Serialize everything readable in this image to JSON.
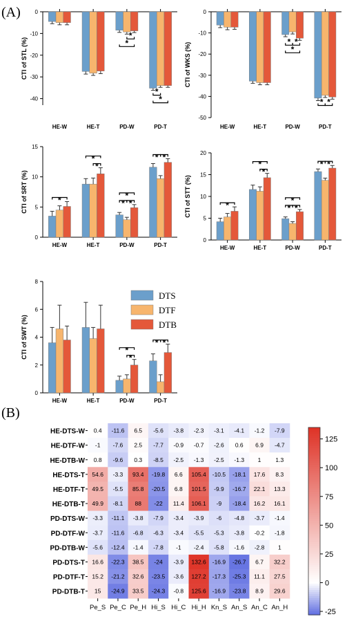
{
  "panel_labels": {
    "a": "(A)",
    "b": "(B)"
  },
  "colors": {
    "DTS": "#6b9fcb",
    "DTF": "#f7b56d",
    "DTB": "#e4583a"
  },
  "chart_data": [
    {
      "id": "stl",
      "type": "bar",
      "ylabel": "CTI of STL (%)",
      "categories": [
        "HE-W",
        "HE-T",
        "PD-W",
        "PD-T"
      ],
      "yticks": [
        0,
        -10,
        -20,
        -30,
        -40
      ],
      "ylim": [
        -43,
        0
      ],
      "series": [
        {
          "name": "DTS",
          "values": [
            -4.5,
            -27.5,
            -8.5,
            -35.2
          ],
          "errors": [
            1.0,
            1.2,
            1.0,
            1.0
          ]
        },
        {
          "name": "DTF",
          "values": [
            -5.0,
            -28.3,
            -9.3,
            -34.0
          ],
          "errors": [
            1.0,
            1.0,
            1.0,
            0.8
          ]
        },
        {
          "name": "DTB",
          "values": [
            -5.0,
            -27.3,
            -8.8,
            -34.0
          ],
          "errors": [
            1.0,
            1.2,
            0.8,
            0.8
          ]
        }
      ],
      "significance": [
        {
          "category": 2,
          "from": 0,
          "to": 2,
          "level": 1,
          "label": "*"
        },
        {
          "category": 2,
          "from": 1,
          "to": 2,
          "level": 0,
          "label": "*"
        },
        {
          "category": 3,
          "from": 0,
          "to": 2,
          "level": 1,
          "label": "*"
        },
        {
          "category": 3,
          "from": 0,
          "to": 1,
          "level": 0,
          "label": "*"
        }
      ]
    },
    {
      "id": "wks",
      "type": "bar",
      "ylabel": "CTI of WKS (%)",
      "categories": [
        "HE-W",
        "HE-T",
        "PD-W",
        "PD-T"
      ],
      "yticks": [
        0,
        -10,
        -20,
        -30,
        -40,
        -50
      ],
      "ylim": [
        -50,
        0
      ],
      "series": [
        {
          "name": "DTS",
          "values": [
            -6.3,
            -32.8,
            -10.8,
            -40.8
          ],
          "errors": [
            1.2,
            1.0,
            1.0,
            1.2
          ]
        },
        {
          "name": "DTF",
          "values": [
            -7.3,
            -33.5,
            -9.5,
            -39.5
          ],
          "errors": [
            1.2,
            1.0,
            1.0,
            1.0
          ]
        },
        {
          "name": "DTB",
          "values": [
            -7.3,
            -33.5,
            -12.5,
            -40.3
          ],
          "errors": [
            1.0,
            1.0,
            1.0,
            1.0
          ]
        }
      ],
      "significance": [
        {
          "category": 2,
          "from": 0,
          "to": 2,
          "level": 1,
          "label": "*"
        },
        {
          "category": 2,
          "from": 0,
          "to": 1,
          "level": 0,
          "label": "*"
        },
        {
          "category": 2,
          "from": 1,
          "to": 2,
          "level": 0,
          "label": "*"
        },
        {
          "category": 3,
          "from": 0,
          "to": 1,
          "level": 0,
          "label": "*"
        },
        {
          "category": 3,
          "from": 1,
          "to": 2,
          "level": 0,
          "label": "*"
        }
      ]
    },
    {
      "id": "srt",
      "type": "bar",
      "ylabel": "CTI of SRT (%)",
      "categories": [
        "HE-W",
        "HE-T",
        "PD-W",
        "PD-T"
      ],
      "yticks": [
        0,
        5,
        10,
        15
      ],
      "ylim": [
        0,
        15
      ],
      "series": [
        {
          "name": "DTS",
          "values": [
            3.5,
            8.8,
            3.7,
            11.6
          ],
          "errors": [
            0.8,
            0.9,
            0.4,
            0.6
          ]
        },
        {
          "name": "DTF",
          "values": [
            4.5,
            8.8,
            2.9,
            9.7
          ],
          "errors": [
            0.7,
            1.0,
            0.4,
            0.5
          ]
        },
        {
          "name": "DTB",
          "values": [
            5.1,
            10.5,
            4.9,
            12.4
          ],
          "errors": [
            0.8,
            1.0,
            0.5,
            0.6
          ]
        }
      ],
      "significance": [
        {
          "category": 0,
          "from": 0,
          "to": 2,
          "level": 0,
          "label": "*"
        },
        {
          "category": 1,
          "from": 0,
          "to": 2,
          "level": 1,
          "label": "*"
        },
        {
          "category": 1,
          "from": 1,
          "to": 2,
          "level": 0,
          "label": "*"
        },
        {
          "category": 2,
          "from": 0,
          "to": 2,
          "level": 1,
          "label": "*"
        },
        {
          "category": 2,
          "from": 0,
          "to": 1,
          "level": 0,
          "label": "*"
        },
        {
          "category": 2,
          "from": 1,
          "to": 2,
          "level": 0,
          "label": "*"
        },
        {
          "category": 3,
          "from": 0,
          "to": 1,
          "level": 0,
          "label": "*"
        },
        {
          "category": 3,
          "from": 1,
          "to": 2,
          "level": 0,
          "label": "*"
        }
      ]
    },
    {
      "id": "stt",
      "type": "bar",
      "ylabel": "CTI of STT (%)",
      "categories": [
        "HE-W",
        "HE-T",
        "PD-W",
        "PD-T"
      ],
      "yticks": [
        0,
        5,
        10,
        15,
        20
      ],
      "ylim": [
        0,
        20
      ],
      "series": [
        {
          "name": "DTS",
          "values": [
            4.2,
            11.6,
            4.9,
            15.7
          ],
          "errors": [
            0.8,
            1.0,
            0.4,
            0.6
          ]
        },
        {
          "name": "DTF",
          "values": [
            5.3,
            11.2,
            3.8,
            13.7
          ],
          "errors": [
            0.8,
            1.0,
            0.4,
            0.5
          ]
        },
        {
          "name": "DTB",
          "values": [
            6.6,
            14.3,
            6.5,
            16.5
          ],
          "errors": [
            1.0,
            1.0,
            0.5,
            0.6
          ]
        }
      ],
      "significance": [
        {
          "category": 0,
          "from": 0,
          "to": 2,
          "level": 0,
          "label": "*"
        },
        {
          "category": 1,
          "from": 0,
          "to": 2,
          "level": 1,
          "label": "*"
        },
        {
          "category": 1,
          "from": 1,
          "to": 2,
          "level": 0,
          "label": "*"
        },
        {
          "category": 2,
          "from": 0,
          "to": 2,
          "level": 1,
          "label": "*"
        },
        {
          "category": 2,
          "from": 0,
          "to": 1,
          "level": 0,
          "label": "*"
        },
        {
          "category": 2,
          "from": 1,
          "to": 2,
          "level": 0,
          "label": "*"
        },
        {
          "category": 3,
          "from": 0,
          "to": 1,
          "level": 0,
          "label": "*"
        },
        {
          "category": 3,
          "from": 1,
          "to": 2,
          "level": 0,
          "label": "*"
        }
      ]
    },
    {
      "id": "swt",
      "type": "bar",
      "ylabel": "CTI of SWT (%)",
      "categories": [
        "HE-W",
        "HE-T",
        "PD-W",
        "PD-T"
      ],
      "yticks": [
        0,
        2,
        4,
        6,
        8
      ],
      "ylim": [
        0,
        8
      ],
      "series": [
        {
          "name": "DTS",
          "values": [
            3.6,
            4.7,
            0.9,
            2.3
          ],
          "errors": [
            1.1,
            1.8,
            0.3,
            0.5
          ]
        },
        {
          "name": "DTF",
          "values": [
            4.6,
            3.9,
            1.0,
            0.8
          ],
          "errors": [
            1.7,
            0.8,
            0.3,
            0.5
          ]
        },
        {
          "name": "DTB",
          "values": [
            3.8,
            4.6,
            2.0,
            2.9
          ],
          "errors": [
            1.0,
            1.7,
            0.4,
            0.6
          ]
        }
      ],
      "significance": [
        {
          "category": 2,
          "from": 0,
          "to": 2,
          "level": 1,
          "label": "*"
        },
        {
          "category": 2,
          "from": 1,
          "to": 2,
          "level": 0,
          "label": "*"
        },
        {
          "category": 3,
          "from": 0,
          "to": 1,
          "level": 0,
          "label": "*"
        },
        {
          "category": 3,
          "from": 1,
          "to": 2,
          "level": 0,
          "label": "*"
        }
      ]
    },
    {
      "id": "heatmap",
      "type": "heatmap",
      "rows": [
        "HE-DTS-W",
        "HE-DTF-W",
        "HE-DTB-W",
        "HE-DTS-T",
        "HE-DTF-T",
        "HE-DTB-T",
        "PD-DTS-W",
        "PD-DTF-W",
        "PD-DTB-W",
        "PD-DTS-T",
        "PD-DTF-T",
        "PD-DTB-T"
      ],
      "columns": [
        "Pe_S",
        "Pe_C",
        "Pe_H",
        "Hi_S",
        "Hi_C",
        "Hi_H",
        "Kn_S",
        "An_S",
        "An_C",
        "An_H"
      ],
      "values": [
        [
          0.4,
          -11.6,
          6.5,
          -5.6,
          -3.8,
          -2.3,
          -3.1,
          -4.1,
          -1.2,
          -7.9
        ],
        [
          -1.0,
          -7.6,
          2.5,
          -7.7,
          -0.9,
          -0.7,
          -2.6,
          0.6,
          6.9,
          -4.7
        ],
        [
          0.8,
          -9.6,
          0.3,
          -8.5,
          -2.5,
          -1.3,
          -2.5,
          -1.3,
          1.0,
          1.3
        ],
        [
          54.6,
          -3.3,
          93.4,
          -19.8,
          6.6,
          105.4,
          -10.5,
          -18.1,
          17.6,
          8.3
        ],
        [
          49.5,
          -5.5,
          85.8,
          -20.5,
          6.8,
          101.5,
          -9.9,
          -16.7,
          22.1,
          13.3
        ],
        [
          49.9,
          -8.1,
          88.0,
          -22.0,
          11.4,
          106.1,
          -9.0,
          -18.4,
          16.2,
          16.1
        ],
        [
          -3.3,
          -11.1,
          -3.8,
          -7.9,
          -3.4,
          -3.9,
          -6.0,
          -4.8,
          -3.7,
          -1.4
        ],
        [
          -3.7,
          -11.6,
          -6.8,
          -6.3,
          -3.4,
          -5.5,
          -5.3,
          -3.8,
          -0.2,
          -1.8
        ],
        [
          -5.6,
          -12.4,
          -1.4,
          -7.8,
          -1.0,
          -2.4,
          -5.8,
          -1.6,
          -2.8,
          1.0
        ],
        [
          16.6,
          -22.3,
          38.5,
          -24.0,
          -3.9,
          132.6,
          -16.9,
          -26.7,
          6.7,
          32.2
        ],
        [
          15.2,
          -21.2,
          32.6,
          -23.5,
          -3.6,
          127.2,
          -17.3,
          -25.3,
          11.1,
          27.5
        ],
        [
          15.0,
          -24.9,
          33.5,
          -24.3,
          -0.8,
          125.6,
          -16.9,
          -23.8,
          8.9,
          29.6
        ]
      ],
      "colorbar": {
        "ticks": [
          125,
          100,
          75,
          50,
          25,
          0,
          -25
        ],
        "min": -28,
        "max": 135
      }
    }
  ]
}
